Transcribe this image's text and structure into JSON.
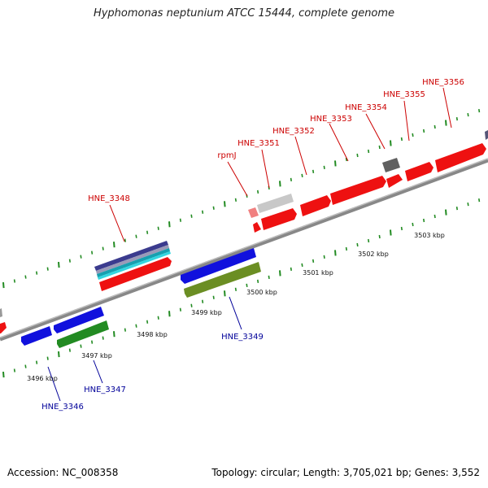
{
  "title": "Hyphomonas neptunium ATCC 15444, complete genome",
  "footer": {
    "accession": "Accession: NC_008358",
    "info": "Topology: circular; Length: 3,705,021 bp; Genes: 3,552"
  },
  "colors": {
    "forward_label": "#cc0000",
    "reverse_label": "#000099",
    "forward_gene": "#ee1111",
    "reverse_gene": "#1111dd",
    "reverse_rna": "#228b22",
    "olive_gene": "#6b8e23",
    "pseudo_gene": "#c8c8c8",
    "dark_gene": "#606060",
    "backbone": "#8a8a8a",
    "tick": "#228b22"
  },
  "axis_ticks": [
    {
      "label": "3496 kbp"
    },
    {
      "label": "3497 kbp"
    },
    {
      "label": "3498 kbp"
    },
    {
      "label": "3499 kbp"
    },
    {
      "label": "3500 kbp"
    },
    {
      "label": "3501 kbp"
    },
    {
      "label": "3502 kbp"
    },
    {
      "label": "3503 kbp"
    }
  ],
  "gene_labels": [
    {
      "text": "HNE_3348",
      "strand": "forward"
    },
    {
      "text": "rpmJ",
      "strand": "forward"
    },
    {
      "text": "HNE_3351",
      "strand": "forward"
    },
    {
      "text": "HNE_3352",
      "strand": "forward"
    },
    {
      "text": "HNE_3353",
      "strand": "forward"
    },
    {
      "text": "HNE_3354",
      "strand": "forward"
    },
    {
      "text": "HNE_3355",
      "strand": "forward"
    },
    {
      "text": "HNE_3356",
      "strand": "forward"
    },
    {
      "text": "HNE_3349",
      "strand": "reverse"
    },
    {
      "text": "HNE_3347",
      "strand": "reverse"
    },
    {
      "text": "HNE_3346",
      "strand": "reverse"
    }
  ]
}
